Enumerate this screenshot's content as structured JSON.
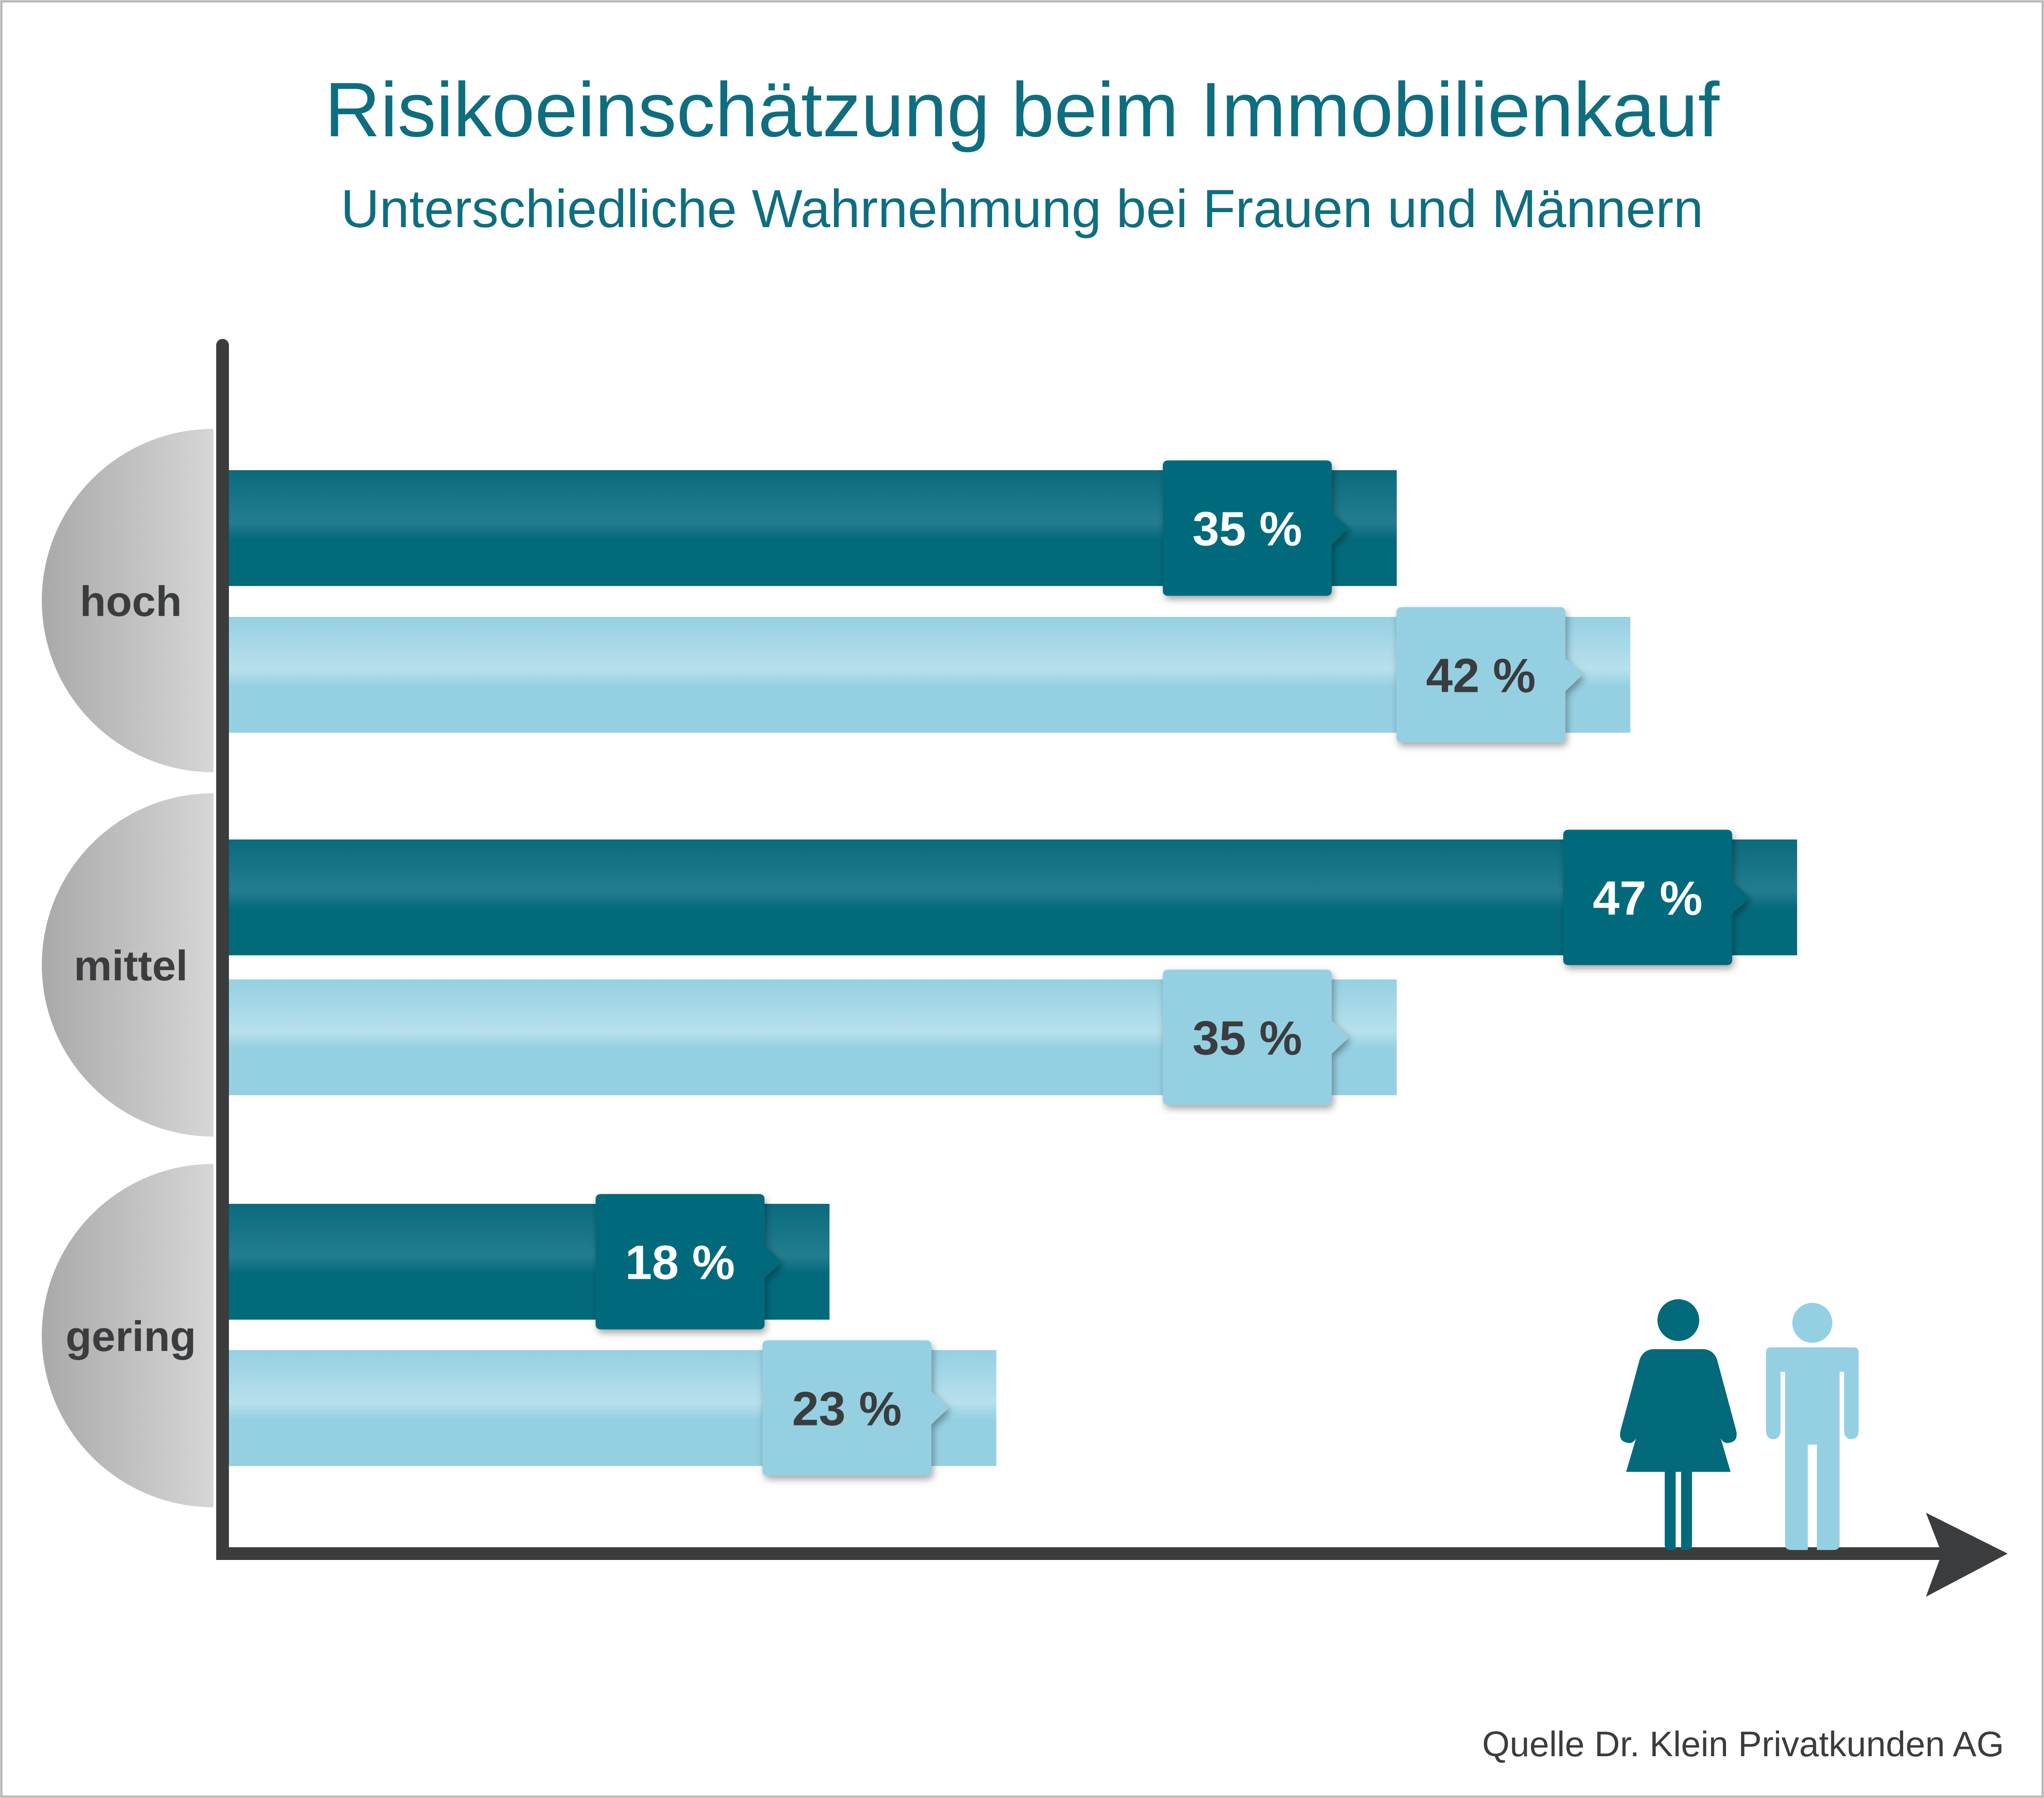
{
  "chart_data": {
    "type": "bar",
    "orientation": "horizontal",
    "title": "Risikoeinschätzung beim Immobilienkauf",
    "subtitle": "Unterschiedliche Wahrnehmung bei Frauen und Männern",
    "categories": [
      "hoch",
      "mittel",
      "gering"
    ],
    "series": [
      {
        "values": [
          35,
          47,
          18
        ],
        "labels": [
          "35 %",
          "47 %",
          "18 %"
        ],
        "color": "#036a7c"
      },
      {
        "values": [
          42,
          35,
          23
        ],
        "labels": [
          "42 %",
          "35 %",
          "23 %"
        ],
        "color": "#95d0e2"
      }
    ],
    "xlim": [
      0,
      60
    ],
    "grid": false,
    "legend": "icons bottom-right",
    "legend_icons": [
      "woman-icon",
      "man-icon"
    ],
    "source": "Quelle Dr. Klein Privatkunden AG"
  },
  "colors": {
    "title": "#0e6e80",
    "axis": "#3a3c3e",
    "category_bubble": "#cfcfcf",
    "frame": "#b8b8b8"
  }
}
